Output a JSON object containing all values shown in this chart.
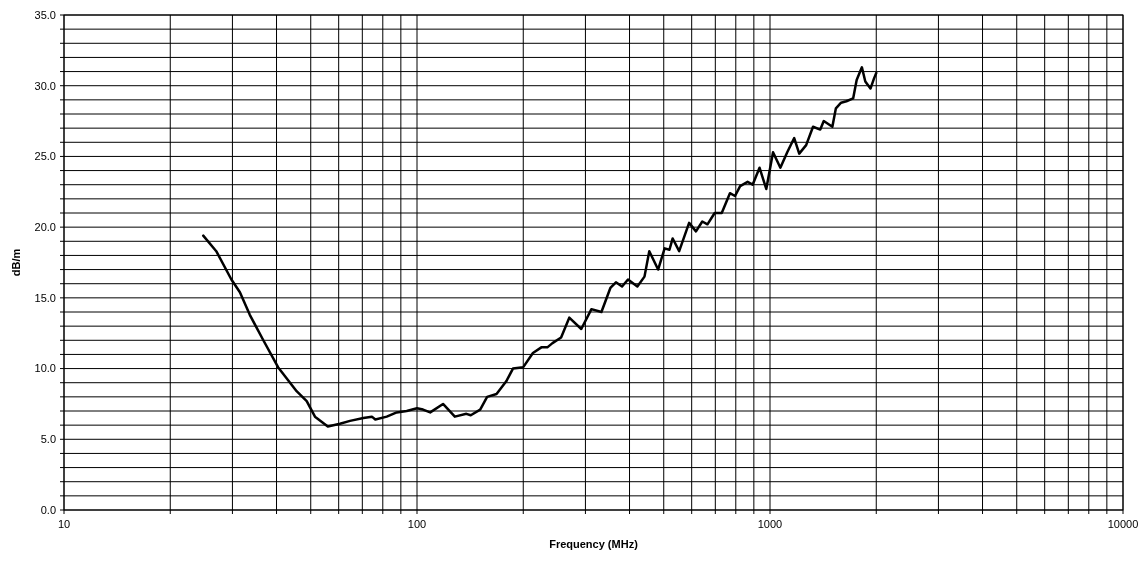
{
  "chart_data": {
    "type": "line",
    "xlabel": "Frequency (MHz)",
    "ylabel": "dB/m",
    "log": "x",
    "grid": true,
    "marker": "none",
    "line_style": "solid",
    "xlim": [
      10,
      10000
    ],
    "ylim": [
      0,
      35
    ],
    "xticks": [
      10,
      {
        "value": 20,
        "label": null
      },
      {
        "value": 30,
        "label": null
      },
      {
        "value": 40,
        "label": null
      },
      {
        "value": 50,
        "label": null
      },
      {
        "value": 60,
        "label": null
      },
      {
        "value": 70,
        "label": null
      },
      {
        "value": 80,
        "label": null
      },
      {
        "value": 90,
        "label": null
      },
      100,
      {
        "value": 200,
        "label": null
      },
      {
        "value": 300,
        "label": null
      },
      {
        "value": 400,
        "label": null
      },
      {
        "value": 500,
        "label": null
      },
      {
        "value": 600,
        "label": null
      },
      {
        "value": 700,
        "label": null
      },
      {
        "value": 800,
        "label": null
      },
      {
        "value": 900,
        "label": null
      },
      1000,
      {
        "value": 2000,
        "label": null
      },
      {
        "value": 3000,
        "label": null
      },
      {
        "value": 4000,
        "label": null
      },
      {
        "value": 5000,
        "label": null
      },
      {
        "value": 6000,
        "label": null
      },
      {
        "value": 7000,
        "label": null
      },
      {
        "value": 8000,
        "label": null
      },
      {
        "value": 9000,
        "label": null
      },
      10000
    ],
    "yticks": [
      {
        "value": 0,
        "label": "0.0"
      },
      {
        "value": 1,
        "label": null
      },
      {
        "value": 2,
        "label": null
      },
      {
        "value": 3,
        "label": null
      },
      {
        "value": 4,
        "label": null
      },
      {
        "value": 5,
        "label": "5.0"
      },
      {
        "value": 6,
        "label": null
      },
      {
        "value": 7,
        "label": null
      },
      {
        "value": 8,
        "label": null
      },
      {
        "value": 9,
        "label": null
      },
      {
        "value": 10,
        "label": "10.0"
      },
      {
        "value": 11,
        "label": null
      },
      {
        "value": 12,
        "label": null
      },
      {
        "value": 13,
        "label": null
      },
      {
        "value": 14,
        "label": null
      },
      {
        "value": 15,
        "label": "15.0"
      },
      {
        "value": 16,
        "label": null
      },
      {
        "value": 17,
        "label": null
      },
      {
        "value": 18,
        "label": null
      },
      {
        "value": 19,
        "label": null
      },
      {
        "value": 20,
        "label": "20.0"
      },
      {
        "value": 21,
        "label": null
      },
      {
        "value": 22,
        "label": null
      },
      {
        "value": 23,
        "label": null
      },
      {
        "value": 24,
        "label": null
      },
      {
        "value": 25,
        "label": "25.0"
      },
      {
        "value": 26,
        "label": null
      },
      {
        "value": 27,
        "label": null
      },
      {
        "value": 28,
        "label": null
      },
      {
        "value": 29,
        "label": null
      },
      {
        "value": 30,
        "label": "30.0"
      },
      {
        "value": 31,
        "label": null
      },
      {
        "value": 32,
        "label": null
      },
      {
        "value": 33,
        "label": null
      },
      {
        "value": 34,
        "label": null
      },
      {
        "value": 35,
        "label": "35.0"
      }
    ],
    "series": [
      {
        "color": "#000000",
        "x": [
          24.8,
          27.0,
          29.8,
          31.5,
          33.6,
          36.7,
          40.4,
          45.6,
          48.7,
          51.4,
          55.9,
          60.5,
          64.6,
          70.5,
          74.5,
          76.2,
          82.1,
          87.6,
          93.5,
          100,
          104,
          109,
          118.5,
          128,
          138,
          142,
          151,
          158,
          168,
          179,
          187,
          200,
          213,
          225,
          234,
          242,
          256,
          270,
          292,
          312,
          333,
          353,
          366,
          381,
          396,
          421,
          441,
          455,
          482,
          503,
          519,
          530,
          553,
          590,
          617,
          643,
          665,
          697,
          730,
          770,
          796,
          823,
          864,
          893,
          934,
          976,
          1020,
          1070,
          1119,
          1171,
          1210,
          1266,
          1324,
          1388,
          1420,
          1502,
          1537,
          1590,
          1646,
          1720,
          1760,
          1821,
          1862,
          1926,
          1970,
          2000
        ],
        "values": [
          19.4,
          18.3,
          16.3,
          15.4,
          13.8,
          12.0,
          10.1,
          8.4,
          7.7,
          6.6,
          5.9,
          6.1,
          6.3,
          6.5,
          6.6,
          6.4,
          6.6,
          6.9,
          7.0,
          7.2,
          7.1,
          6.9,
          7.5,
          6.6,
          6.8,
          6.7,
          7.1,
          8.0,
          8.2,
          9.1,
          10.0,
          10.1,
          11.1,
          11.5,
          11.5,
          11.8,
          12.2,
          13.6,
          12.8,
          14.2,
          14.0,
          15.7,
          16.1,
          15.8,
          16.3,
          15.8,
          16.5,
          18.3,
          17.0,
          18.5,
          18.4,
          19.2,
          18.3,
          20.3,
          19.7,
          20.4,
          20.2,
          21.0,
          21.0,
          22.4,
          22.2,
          22.9,
          23.2,
          23.0,
          24.2,
          22.7,
          25.3,
          24.2,
          25.3,
          26.3,
          25.2,
          25.8,
          27.1,
          26.9,
          27.5,
          27.1,
          28.4,
          28.8,
          28.9,
          29.1,
          30.4,
          31.3,
          30.3,
          29.8,
          30.5,
          30.9
        ]
      }
    ]
  }
}
